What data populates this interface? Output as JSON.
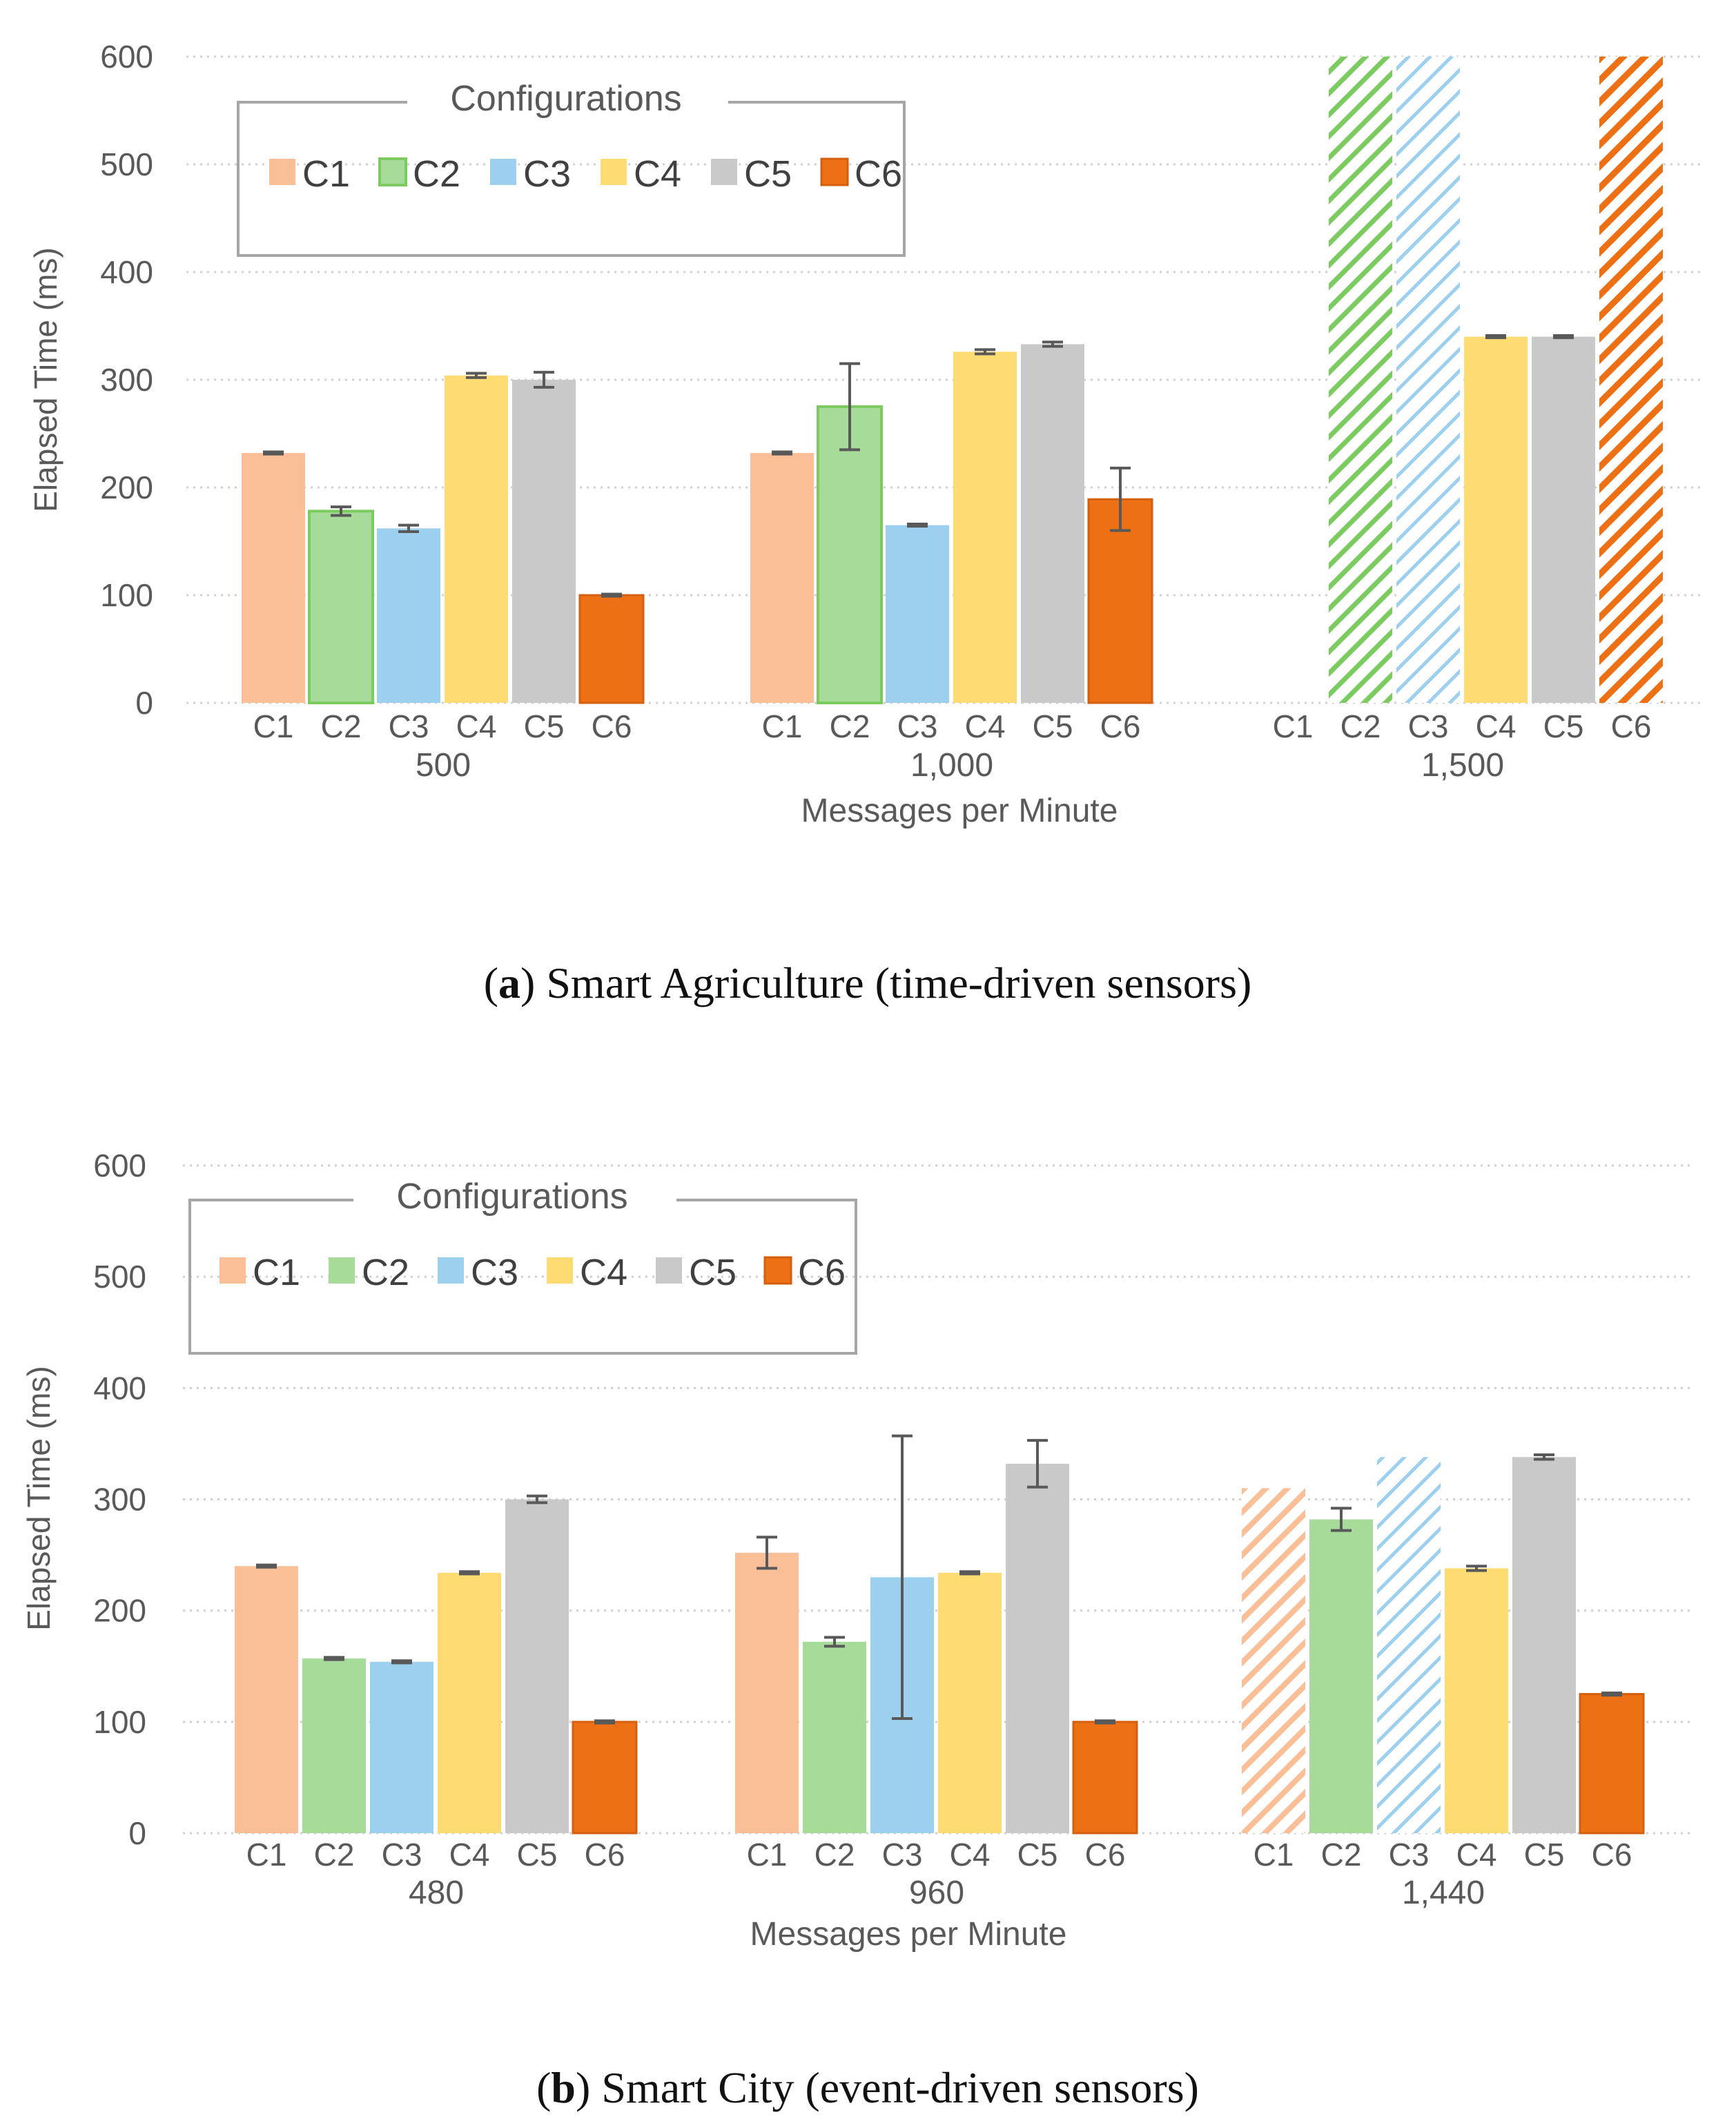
{
  "colors": {
    "C1": "#FBBF98",
    "C2": "#A7DB9A",
    "C3": "#9CD0EE",
    "C4": "#FFDC72",
    "C5": "#C9C9C9",
    "C6": "#ED7014",
    "C2_border": "#7BCB60",
    "C6_border": "#D35F10",
    "grid": "#D0D0D0",
    "errbar": "#595959"
  },
  "chart_data": [
    {
      "type": "bar",
      "panel": "a",
      "caption_letter": "a",
      "caption_text": "Smart Agriculture (time-driven sensors)",
      "ylabel": "Elapsed Time (ms)",
      "xlabel": "Messages per Minute",
      "ylim": [
        0,
        600
      ],
      "yticks": [
        0,
        100,
        200,
        300,
        400,
        500,
        600
      ],
      "grid": true,
      "legend": {
        "title": "Configurations",
        "position": "top-left",
        "entries": [
          "C1",
          "C2",
          "C3",
          "C4",
          "C5",
          "C6"
        ]
      },
      "groups": [
        "500",
        "1,000",
        "1,500"
      ],
      "series": [
        {
          "name": "C1",
          "values": [
            232,
            232,
            null
          ],
          "errors": [
            1,
            1,
            null
          ],
          "hatched": [
            false,
            false,
            false
          ]
        },
        {
          "name": "C2",
          "values": [
            178,
            275,
            600
          ],
          "errors": [
            4,
            40,
            null
          ],
          "hatched": [
            false,
            false,
            true
          ]
        },
        {
          "name": "C3",
          "values": [
            162,
            165,
            600
          ],
          "errors": [
            3,
            1,
            null
          ],
          "hatched": [
            false,
            false,
            true
          ]
        },
        {
          "name": "C4",
          "values": [
            304,
            326,
            340
          ],
          "errors": [
            2,
            2,
            1
          ],
          "hatched": [
            false,
            false,
            false
          ]
        },
        {
          "name": "C5",
          "values": [
            300,
            333,
            340
          ],
          "errors": [
            7,
            2,
            1
          ],
          "hatched": [
            false,
            false,
            false
          ]
        },
        {
          "name": "C6",
          "values": [
            100,
            189,
            600
          ],
          "errors": [
            1,
            29,
            null
          ],
          "hatched": [
            false,
            false,
            true
          ]
        }
      ]
    },
    {
      "type": "bar",
      "panel": "b",
      "caption_letter": "b",
      "caption_text": "Smart City (event-driven sensors)",
      "ylabel": "Elapsed Time (ms)",
      "xlabel": "Messages per Minute",
      "ylim": [
        0,
        600
      ],
      "yticks": [
        0,
        100,
        200,
        300,
        400,
        500,
        600
      ],
      "grid": true,
      "legend": {
        "title": "Configurations",
        "position": "top-left",
        "entries": [
          "C1",
          "C2",
          "C3",
          "C4",
          "C5",
          "C6"
        ]
      },
      "groups": [
        "480",
        "960",
        "1,440"
      ],
      "series": [
        {
          "name": "C1",
          "values": [
            240,
            252,
            310
          ],
          "errors": [
            1,
            14,
            null
          ],
          "hatched": [
            false,
            false,
            true
          ]
        },
        {
          "name": "C2",
          "values": [
            157,
            172,
            282
          ],
          "errors": [
            1,
            4,
            10
          ],
          "hatched": [
            false,
            false,
            false
          ]
        },
        {
          "name": "C3",
          "values": [
            154,
            230,
            338
          ],
          "errors": [
            1,
            127,
            null
          ],
          "hatched": [
            false,
            false,
            true
          ]
        },
        {
          "name": "C4",
          "values": [
            234,
            234,
            238
          ],
          "errors": [
            1,
            1,
            2
          ],
          "hatched": [
            false,
            false,
            false
          ]
        },
        {
          "name": "C5",
          "values": [
            300,
            332,
            338
          ],
          "errors": [
            3,
            21,
            2
          ],
          "hatched": [
            false,
            false,
            false
          ]
        },
        {
          "name": "C6",
          "values": [
            100,
            100,
            125
          ],
          "errors": [
            1,
            1,
            1
          ],
          "hatched": [
            false,
            false,
            false
          ]
        }
      ]
    }
  ]
}
